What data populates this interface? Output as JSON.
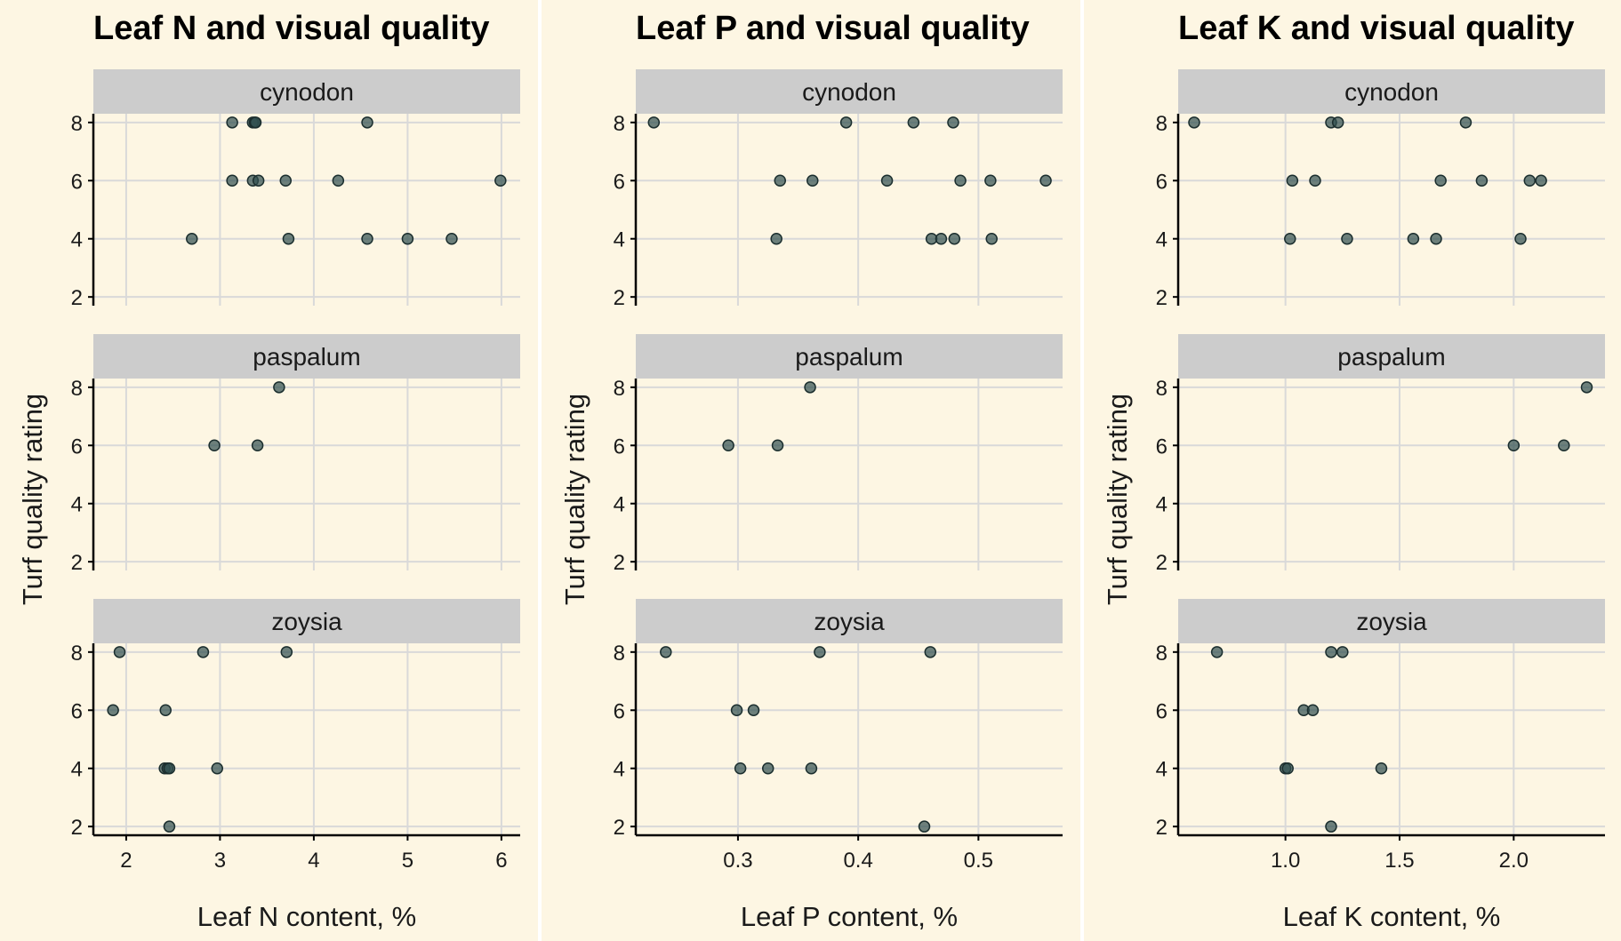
{
  "chart_data": [
    {
      "type": "scatter",
      "title": "Leaf N and visual quality",
      "xlabel": "Leaf N content, %",
      "ylabel": "Turf quality rating",
      "xlim": [
        1.65,
        6.2
      ],
      "ylim": [
        1.7,
        8.3
      ],
      "xticks": [
        "2",
        "3",
        "4",
        "5",
        "6"
      ],
      "xtick_values": [
        2,
        3,
        4,
        5,
        6
      ],
      "yticks": [
        "2",
        "4",
        "6",
        "8"
      ],
      "facets": [
        {
          "name": "cynodon",
          "points": [
            [
              3.13,
              8
            ],
            [
              3.35,
              8
            ],
            [
              3.37,
              8
            ],
            [
              3.38,
              8
            ],
            [
              4.57,
              8
            ],
            [
              3.13,
              6
            ],
            [
              3.35,
              6
            ],
            [
              3.41,
              6
            ],
            [
              3.7,
              6
            ],
            [
              4.26,
              6
            ],
            [
              5.99,
              6
            ],
            [
              2.7,
              4
            ],
            [
              3.73,
              4
            ],
            [
              4.57,
              4
            ],
            [
              5.0,
              4
            ],
            [
              5.47,
              4
            ]
          ]
        },
        {
          "name": "paspalum",
          "points": [
            [
              3.63,
              8
            ],
            [
              2.94,
              6
            ],
            [
              3.4,
              6
            ]
          ]
        },
        {
          "name": "zoysia",
          "points": [
            [
              1.93,
              8
            ],
            [
              2.82,
              8
            ],
            [
              3.71,
              8
            ],
            [
              1.86,
              6
            ],
            [
              2.42,
              6
            ],
            [
              2.41,
              4
            ],
            [
              2.44,
              4
            ],
            [
              2.46,
              4
            ],
            [
              2.97,
              4
            ],
            [
              2.46,
              2
            ]
          ]
        }
      ]
    },
    {
      "type": "scatter",
      "title": "Leaf P and visual quality",
      "xlabel": "Leaf P content, %",
      "ylabel": "Turf quality rating",
      "xlim": [
        0.215,
        0.57
      ],
      "ylim": [
        1.7,
        8.3
      ],
      "xticks": [
        "0.3",
        "0.4",
        "0.5"
      ],
      "xtick_values": [
        0.3,
        0.4,
        0.5
      ],
      "yticks": [
        "2",
        "4",
        "6",
        "8"
      ],
      "facets": [
        {
          "name": "cynodon",
          "points": [
            [
              0.23,
              8
            ],
            [
              0.39,
              8
            ],
            [
              0.446,
              8
            ],
            [
              0.479,
              8
            ],
            [
              0.335,
              6
            ],
            [
              0.362,
              6
            ],
            [
              0.424,
              6
            ],
            [
              0.485,
              6
            ],
            [
              0.51,
              6
            ],
            [
              0.556,
              6
            ],
            [
              0.332,
              4
            ],
            [
              0.461,
              4
            ],
            [
              0.469,
              4
            ],
            [
              0.48,
              4
            ],
            [
              0.511,
              4
            ]
          ]
        },
        {
          "name": "paspalum",
          "points": [
            [
              0.36,
              8
            ],
            [
              0.292,
              6
            ],
            [
              0.333,
              6
            ]
          ]
        },
        {
          "name": "zoysia",
          "points": [
            [
              0.24,
              8
            ],
            [
              0.368,
              8
            ],
            [
              0.46,
              8
            ],
            [
              0.299,
              6
            ],
            [
              0.313,
              6
            ],
            [
              0.302,
              4
            ],
            [
              0.325,
              4
            ],
            [
              0.361,
              4
            ],
            [
              0.455,
              2
            ]
          ]
        }
      ]
    },
    {
      "type": "scatter",
      "title": "Leaf K and visual quality",
      "xlabel": "Leaf K content, %",
      "ylabel": "Turf quality rating",
      "xlim": [
        0.53,
        2.4
      ],
      "ylim": [
        1.7,
        8.3
      ],
      "xticks": [
        "1.0",
        "1.5",
        "2.0"
      ],
      "xtick_values": [
        1.0,
        1.5,
        2.0
      ],
      "yticks": [
        "2",
        "4",
        "6",
        "8"
      ],
      "facets": [
        {
          "name": "cynodon",
          "points": [
            [
              0.6,
              8
            ],
            [
              1.2,
              8
            ],
            [
              1.23,
              8
            ],
            [
              1.79,
              8
            ],
            [
              1.03,
              6
            ],
            [
              1.13,
              6
            ],
            [
              1.68,
              6
            ],
            [
              1.86,
              6
            ],
            [
              2.07,
              6
            ],
            [
              2.12,
              6
            ],
            [
              1.02,
              4
            ],
            [
              1.27,
              4
            ],
            [
              1.56,
              4
            ],
            [
              1.66,
              4
            ],
            [
              2.03,
              4
            ]
          ]
        },
        {
          "name": "paspalum",
          "points": [
            [
              2.32,
              8
            ],
            [
              2.0,
              6
            ],
            [
              2.22,
              6
            ]
          ]
        },
        {
          "name": "zoysia",
          "points": [
            [
              0.7,
              8
            ],
            [
              1.2,
              8
            ],
            [
              1.25,
              8
            ],
            [
              1.08,
              6
            ],
            [
              1.12,
              6
            ],
            [
              1.0,
              4
            ],
            [
              1.01,
              4
            ],
            [
              1.42,
              4
            ],
            [
              1.2,
              2
            ]
          ]
        }
      ]
    }
  ],
  "colors": {
    "background": "#fdf6e3",
    "strip": "#cccccc",
    "grid": "#d9d9d9",
    "point_fill": "#2f4f4f",
    "point_stroke": "#1b2e2e",
    "separator": "#ffffff"
  }
}
